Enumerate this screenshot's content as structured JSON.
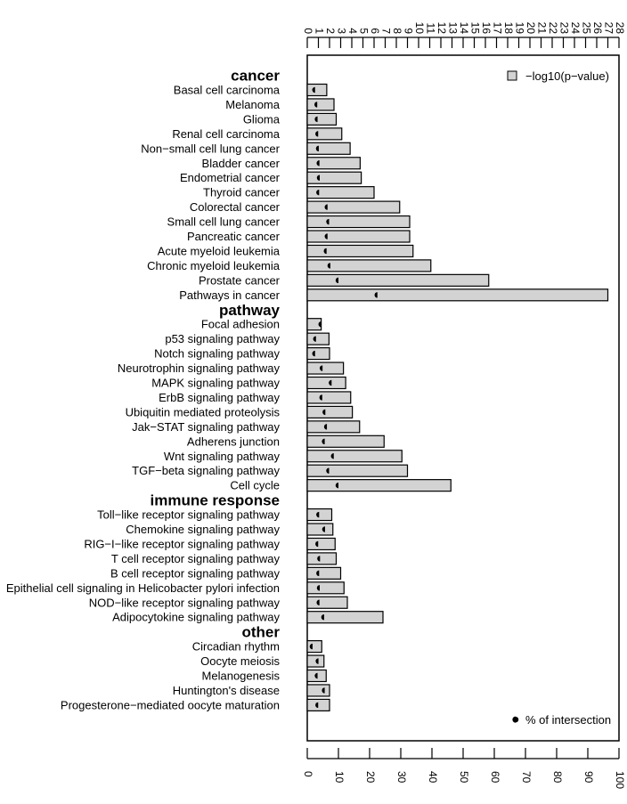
{
  "chart_data": {
    "type": "bar",
    "orientation": "horizontal",
    "top_axis": {
      "min": 0,
      "max": 28,
      "ticks": [
        0,
        1,
        2,
        3,
        4,
        5,
        6,
        7,
        8,
        9,
        10,
        11,
        12,
        13,
        14,
        15,
        16,
        17,
        18,
        19,
        20,
        21,
        22,
        23,
        24,
        25,
        26,
        27,
        28
      ]
    },
    "bottom_axis": {
      "min": 0,
      "max": 100,
      "ticks": [
        0,
        10,
        20,
        30,
        40,
        50,
        60,
        70,
        80,
        90,
        100
      ]
    },
    "legend": {
      "bar_label": "−log10(p−value)",
      "bar_placement": "top-right",
      "point_label": "% of intersection",
      "point_placement": "bottom-right"
    },
    "colors": {
      "bar_fill": "#d3d3d3",
      "bar_stroke": "#000000",
      "point": "#000000"
    },
    "groups": [
      {
        "name": "cancer",
        "items": [
          {
            "label": "Basal cell carcinoma",
            "neg_log10_p": 1.75,
            "pct_intersection": 2.5
          },
          {
            "label": "Melanoma",
            "neg_log10_p": 2.4,
            "pct_intersection": 3.2
          },
          {
            "label": "Glioma",
            "neg_log10_p": 2.6,
            "pct_intersection": 3.3
          },
          {
            "label": "Renal cell carcinoma",
            "neg_log10_p": 3.1,
            "pct_intersection": 3.5
          },
          {
            "label": "Non−small cell lung cancer",
            "neg_log10_p": 3.85,
            "pct_intersection": 3.7
          },
          {
            "label": "Bladder cancer",
            "neg_log10_p": 4.75,
            "pct_intersection": 3.9
          },
          {
            "label": "Endometrial cancer",
            "neg_log10_p": 4.85,
            "pct_intersection": 4.0
          },
          {
            "label": "Thyroid cancer",
            "neg_log10_p": 6.0,
            "pct_intersection": 3.8
          },
          {
            "label": "Colorectal cancer",
            "neg_log10_p": 8.3,
            "pct_intersection": 6.5
          },
          {
            "label": "Small cell lung cancer",
            "neg_log10_p": 9.2,
            "pct_intersection": 7.0
          },
          {
            "label": "Pancreatic cancer",
            "neg_log10_p": 9.2,
            "pct_intersection": 6.5
          },
          {
            "label": "Acute myeloid leukemia",
            "neg_log10_p": 9.5,
            "pct_intersection": 6.2
          },
          {
            "label": "Chronic myeloid leukemia",
            "neg_log10_p": 11.1,
            "pct_intersection": 7.4
          },
          {
            "label": "Prostate cancer",
            "neg_log10_p": 16.3,
            "pct_intersection": 10.0
          },
          {
            "label": "Pathways in cancer",
            "neg_log10_p": 27.0,
            "pct_intersection": 22.5
          }
        ]
      },
      {
        "name": "pathway",
        "items": [
          {
            "label": "Focal adhesion",
            "neg_log10_p": 1.25,
            "pct_intersection": 4.5
          },
          {
            "label": "p53 signaling pathway",
            "neg_log10_p": 1.95,
            "pct_intersection": 2.8
          },
          {
            "label": "Notch signaling pathway",
            "neg_log10_p": 2.0,
            "pct_intersection": 2.5
          },
          {
            "label": "Neurotrophin signaling pathway",
            "neg_log10_p": 3.25,
            "pct_intersection": 4.9
          },
          {
            "label": "MAPK signaling pathway",
            "neg_log10_p": 3.45,
            "pct_intersection": 7.8
          },
          {
            "label": "ErbB signaling pathway",
            "neg_log10_p": 3.9,
            "pct_intersection": 4.8
          },
          {
            "label": "Ubiquitin mediated proteolysis",
            "neg_log10_p": 4.05,
            "pct_intersection": 5.8
          },
          {
            "label": "Jak−STAT signaling pathway",
            "neg_log10_p": 4.7,
            "pct_intersection": 6.3
          },
          {
            "label": "Adherens junction",
            "neg_log10_p": 6.9,
            "pct_intersection": 5.6
          },
          {
            "label": "Wnt signaling pathway",
            "neg_log10_p": 8.5,
            "pct_intersection": 8.5
          },
          {
            "label": "TGF−beta signaling pathway",
            "neg_log10_p": 9.0,
            "pct_intersection": 7.0
          },
          {
            "label": "Cell cycle",
            "neg_log10_p": 12.9,
            "pct_intersection": 10.0
          }
        ]
      },
      {
        "name": "immune response",
        "items": [
          {
            "label": "Toll−like receptor signaling pathway",
            "neg_log10_p": 2.2,
            "pct_intersection": 3.8
          },
          {
            "label": "Chemokine signaling pathway",
            "neg_log10_p": 2.3,
            "pct_intersection": 5.7
          },
          {
            "label": "RIG−I−like receptor signaling pathway",
            "neg_log10_p": 2.5,
            "pct_intersection": 3.5
          },
          {
            "label": "T cell receptor signaling pathway",
            "neg_log10_p": 2.6,
            "pct_intersection": 4.1
          },
          {
            "label": "B cell receptor signaling pathway",
            "neg_log10_p": 3.0,
            "pct_intersection": 3.8
          },
          {
            "label": "Epithelial cell signaling in Helicobacter pylori infection",
            "neg_log10_p": 3.3,
            "pct_intersection": 4.0
          },
          {
            "label": "NOD−like receptor signaling pathway",
            "neg_log10_p": 3.6,
            "pct_intersection": 3.9
          },
          {
            "label": "Adipocytokine signaling pathway",
            "neg_log10_p": 6.8,
            "pct_intersection": 5.4
          }
        ]
      },
      {
        "name": "other",
        "items": [
          {
            "label": "Circadian rhythm",
            "neg_log10_p": 1.3,
            "pct_intersection": 1.7
          },
          {
            "label": "Oocyte meiosis",
            "neg_log10_p": 1.5,
            "pct_intersection": 3.6
          },
          {
            "label": "Melanogenesis",
            "neg_log10_p": 1.7,
            "pct_intersection": 3.3
          },
          {
            "label": "Huntington's disease",
            "neg_log10_p": 2.0,
            "pct_intersection": 5.6
          },
          {
            "label": "Progesterone−mediated oocyte maturation",
            "neg_log10_p": 2.0,
            "pct_intersection": 3.5
          }
        ]
      }
    ]
  }
}
